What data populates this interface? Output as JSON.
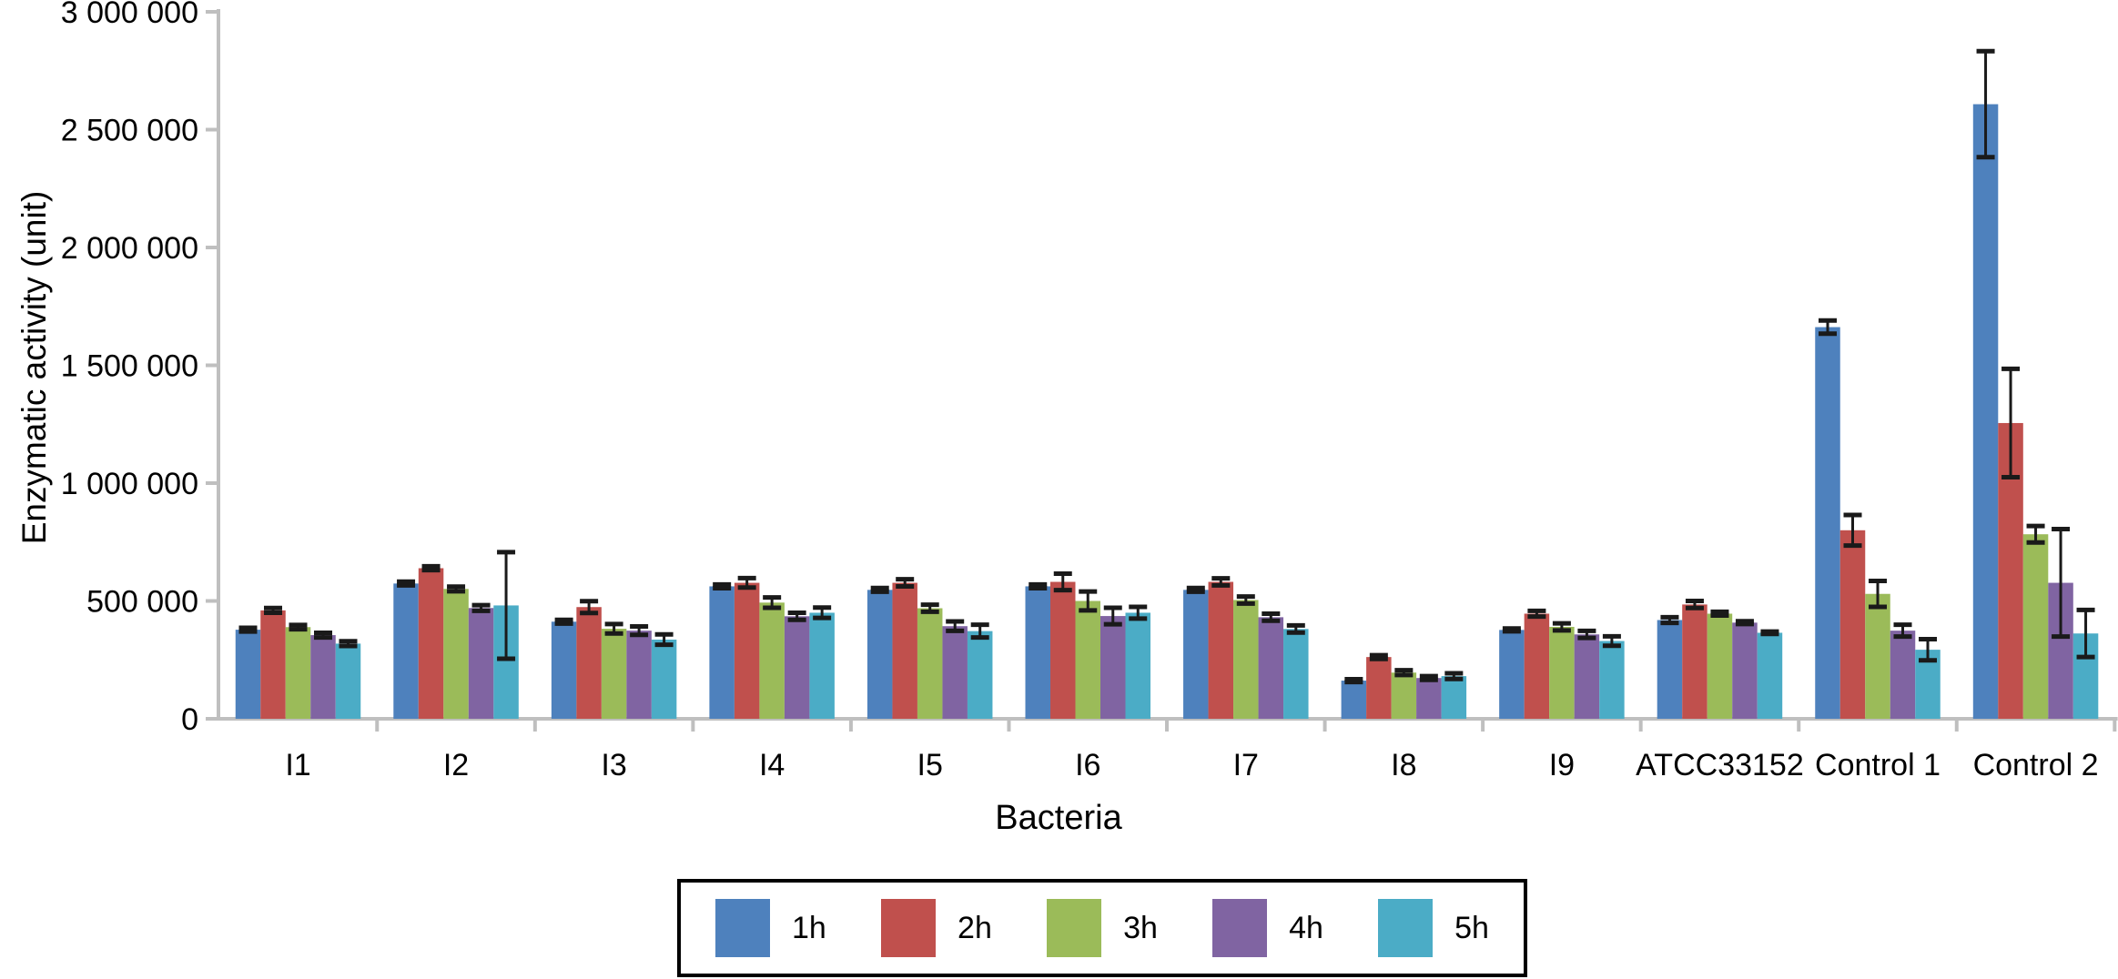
{
  "chart_data": {
    "type": "bar",
    "title": "",
    "xlabel": "Bacteria",
    "ylabel": "Enzymatic activity (unit)",
    "ylim": [
      0,
      3000000
    ],
    "ytick_interval": 500000,
    "ytick_labels": [
      "0",
      "500 000",
      "1 000 000",
      "1 500 000",
      "2 000 000",
      "2 500 000",
      "3 000 000"
    ],
    "grid": false,
    "legend_position": "bottom",
    "error_bars": true,
    "categories": [
      "I1",
      "I2",
      "I3",
      "I4",
      "I5",
      "I6",
      "I7",
      "I8",
      "I9",
      "ATCC33152",
      "Control 1",
      "Control 2"
    ],
    "series": [
      {
        "name": "1h",
        "color": "#4E81BD",
        "values": [
          378000,
          574000,
          412000,
          562000,
          547000,
          562000,
          547000,
          162000,
          377000,
          419000,
          1662000,
          2608000
        ],
        "errors": [
          8000,
          8000,
          8000,
          8000,
          8000,
          8000,
          8000,
          6000,
          6000,
          12000,
          28000,
          225000
        ]
      },
      {
        "name": "2h",
        "color": "#C0504D",
        "values": [
          460000,
          639000,
          474000,
          577000,
          577000,
          581000,
          581000,
          262000,
          446000,
          485000,
          800000,
          1255000
        ],
        "errors": [
          10000,
          8000,
          25000,
          20000,
          15000,
          35000,
          15000,
          8000,
          12000,
          15000,
          65000,
          230000
        ]
      },
      {
        "name": "3h",
        "color": "#9BBB59",
        "values": [
          389000,
          551000,
          382000,
          493000,
          469000,
          500000,
          504000,
          196000,
          390000,
          446000,
          530000,
          783000
        ],
        "errors": [
          9000,
          10000,
          20000,
          22000,
          15000,
          40000,
          15000,
          10000,
          15000,
          8000,
          55000,
          35000
        ]
      },
      {
        "name": "4h",
        "color": "#8064A2",
        "values": [
          355000,
          470000,
          374000,
          435000,
          393000,
          436000,
          431000,
          173000,
          358000,
          408000,
          374000,
          577000
        ],
        "errors": [
          10000,
          12000,
          18000,
          15000,
          20000,
          35000,
          15000,
          8000,
          15000,
          6000,
          25000,
          228000
        ]
      },
      {
        "name": "5h",
        "color": "#4BACC6",
        "values": [
          319000,
          481000,
          336000,
          450000,
          372000,
          450000,
          381000,
          181000,
          330000,
          365000,
          293000,
          362000
        ],
        "errors": [
          10000,
          226000,
          22000,
          22000,
          27000,
          25000,
          15000,
          12000,
          20000,
          5000,
          45000,
          100000
        ]
      }
    ]
  },
  "colors": {
    "axis": "#BFBFBF",
    "error_bar": "#1A1A1A",
    "text": "#000000",
    "background": "#FFFFFF",
    "legend_border": "#000000"
  }
}
